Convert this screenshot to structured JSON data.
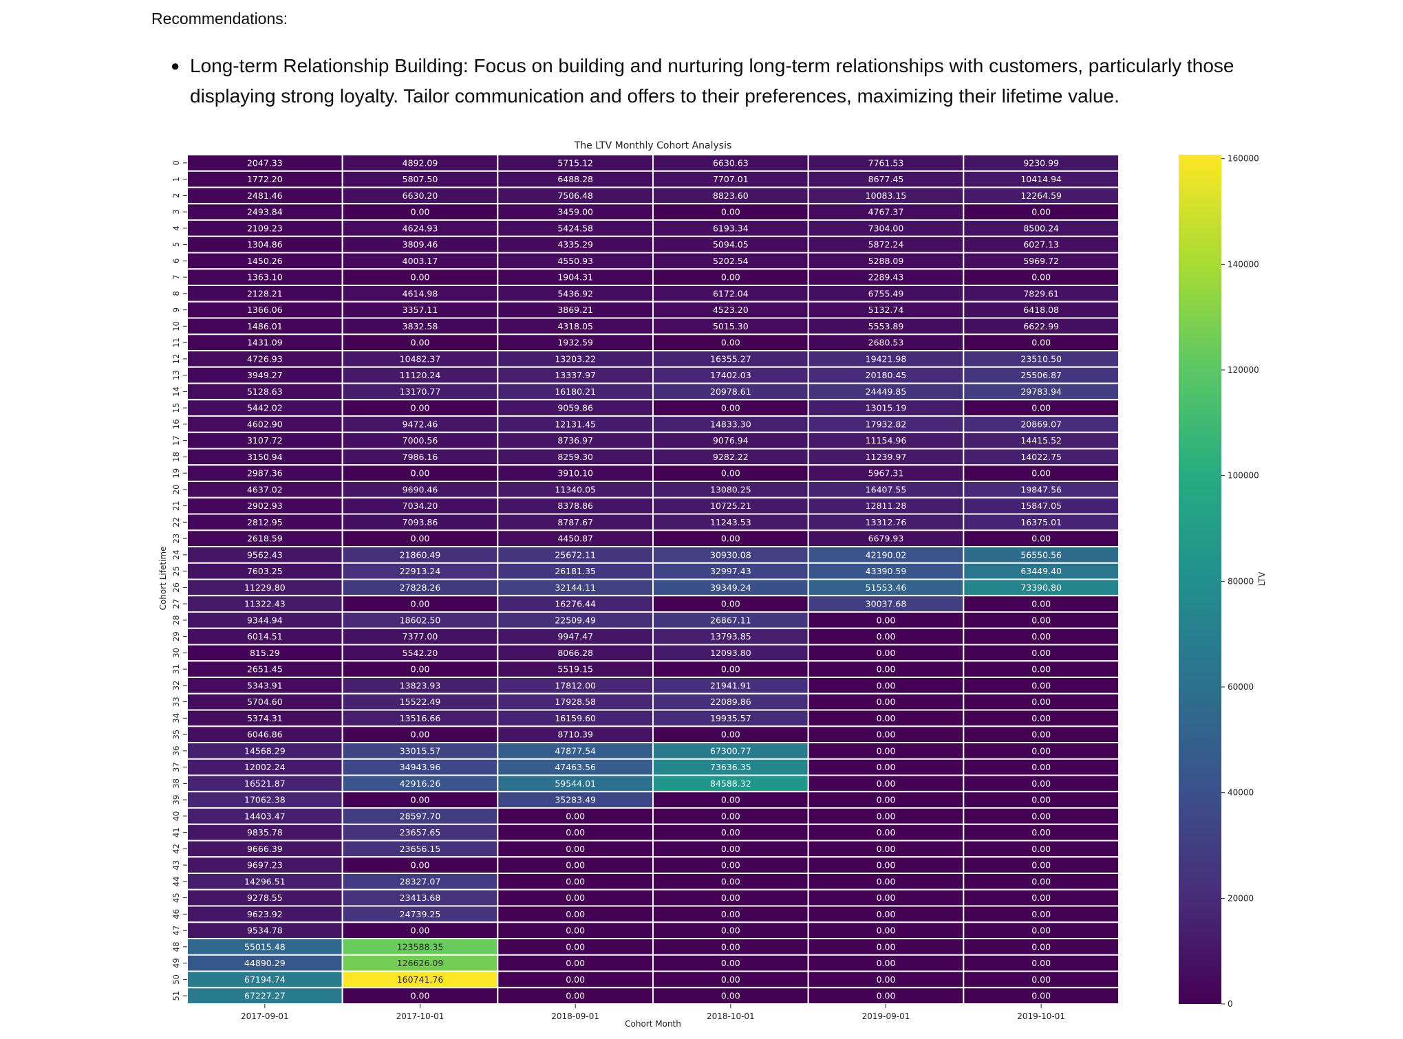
{
  "document": {
    "heading": "Recommendations:",
    "bullets": [
      {
        "title": "Long-term Relationship Building:",
        "text": "Focus on building and nurturing long-term relationships with customers, particularly those displaying strong loyalty. Tailor communication and offers to their preferences, maximizing their lifetime value."
      }
    ]
  },
  "chart_data": {
    "type": "heatmap",
    "title": "The LTV Monthly Cohort Analysis",
    "xlabel": "Cohort Month",
    "ylabel": "Cohort Lifetime",
    "colorbar_label": "LTV",
    "colormap": "viridis",
    "vmin": 0,
    "vmax": 160741.76,
    "colorbar_ticks": [
      0,
      20000,
      40000,
      60000,
      80000,
      100000,
      120000,
      140000,
      160000
    ],
    "columns": [
      "2017-09-01",
      "2017-10-01",
      "2018-09-01",
      "2018-10-01",
      "2019-09-01",
      "2019-10-01"
    ],
    "rows": [
      "0",
      "1",
      "2",
      "3",
      "4",
      "5",
      "6",
      "7",
      "8",
      "9",
      "10",
      "11",
      "12",
      "13",
      "14",
      "15",
      "16",
      "17",
      "18",
      "19",
      "20",
      "21",
      "22",
      "23",
      "24",
      "25",
      "26",
      "27",
      "28",
      "29",
      "30",
      "31",
      "32",
      "33",
      "34",
      "35",
      "36",
      "37",
      "38",
      "39",
      "40",
      "41",
      "42",
      "43",
      "44",
      "45",
      "46",
      "47",
      "48",
      "49",
      "50",
      "51"
    ],
    "values": [
      [
        2047.33,
        4892.09,
        5715.12,
        6630.63,
        7761.53,
        9230.99
      ],
      [
        1772.2,
        5807.5,
        6488.28,
        7707.01,
        8677.45,
        10414.94
      ],
      [
        2481.46,
        6630.2,
        7506.48,
        8823.6,
        10083.15,
        12264.59
      ],
      [
        2493.84,
        0.0,
        3459.0,
        0.0,
        4767.37,
        0.0
      ],
      [
        2109.23,
        4624.93,
        5424.58,
        6193.34,
        7304.0,
        8500.24
      ],
      [
        1304.86,
        3809.46,
        4335.29,
        5094.05,
        5872.24,
        6027.13
      ],
      [
        1450.26,
        4003.17,
        4550.93,
        5202.54,
        5288.09,
        5969.72
      ],
      [
        1363.1,
        0.0,
        1904.31,
        0.0,
        2289.43,
        0.0
      ],
      [
        2128.21,
        4614.98,
        5436.92,
        6172.04,
        6755.49,
        7829.61
      ],
      [
        1366.06,
        3357.11,
        3869.21,
        4523.2,
        5132.74,
        6418.08
      ],
      [
        1486.01,
        3832.58,
        4318.05,
        5015.3,
        5553.89,
        6622.99
      ],
      [
        1431.09,
        0.0,
        1932.59,
        0.0,
        2680.53,
        0.0
      ],
      [
        4726.93,
        10482.37,
        13203.22,
        16355.27,
        19421.98,
        23510.5
      ],
      [
        3949.27,
        11120.24,
        13337.97,
        17402.03,
        20180.45,
        25506.87
      ],
      [
        5128.63,
        13170.77,
        16180.21,
        20978.61,
        24449.85,
        29783.94
      ],
      [
        5442.02,
        0.0,
        9059.86,
        0.0,
        13015.19,
        0.0
      ],
      [
        4602.9,
        9472.46,
        12131.45,
        14833.3,
        17932.82,
        20869.07
      ],
      [
        3107.72,
        7000.56,
        8736.97,
        9076.94,
        11154.96,
        14415.52
      ],
      [
        3150.94,
        7986.16,
        8259.3,
        9282.22,
        11239.97,
        14022.75
      ],
      [
        2987.36,
        0.0,
        3910.1,
        0.0,
        5967.31,
        0.0
      ],
      [
        4637.02,
        9690.46,
        11340.05,
        13080.25,
        16407.55,
        19847.56
      ],
      [
        2902.93,
        7034.2,
        8378.86,
        10725.21,
        12811.28,
        15847.05
      ],
      [
        2812.95,
        7093.86,
        8787.67,
        11243.53,
        13312.76,
        16375.01
      ],
      [
        2618.59,
        0.0,
        4450.87,
        0.0,
        6679.93,
        0.0
      ],
      [
        9562.43,
        21860.49,
        25672.11,
        30930.08,
        42190.02,
        56550.56
      ],
      [
        7603.25,
        22913.24,
        26181.35,
        32997.43,
        43390.59,
        63449.4
      ],
      [
        11229.8,
        27828.26,
        32144.11,
        39349.24,
        51553.46,
        73390.8
      ],
      [
        11322.43,
        0.0,
        16276.44,
        0.0,
        30037.68,
        0.0
      ],
      [
        9344.94,
        18602.5,
        22509.49,
        26867.11,
        0.0,
        0.0
      ],
      [
        6014.51,
        7377.0,
        9947.47,
        13793.85,
        0.0,
        0.0
      ],
      [
        815.29,
        5542.2,
        8066.28,
        12093.8,
        0.0,
        0.0
      ],
      [
        2651.45,
        0.0,
        5519.15,
        0.0,
        0.0,
        0.0
      ],
      [
        5343.91,
        13823.93,
        17812.0,
        21941.91,
        0.0,
        0.0
      ],
      [
        5704.6,
        15522.49,
        17928.58,
        22089.86,
        0.0,
        0.0
      ],
      [
        5374.31,
        13516.66,
        16159.6,
        19935.57,
        0.0,
        0.0
      ],
      [
        6046.86,
        0.0,
        8710.39,
        0.0,
        0.0,
        0.0
      ],
      [
        14568.29,
        33015.57,
        47877.54,
        67300.77,
        0.0,
        0.0
      ],
      [
        12002.24,
        34943.96,
        47463.56,
        73636.35,
        0.0,
        0.0
      ],
      [
        16521.87,
        42916.26,
        59544.01,
        84588.32,
        0.0,
        0.0
      ],
      [
        17062.38,
        0.0,
        35283.49,
        0.0,
        0.0,
        0.0
      ],
      [
        14403.47,
        28597.7,
        0.0,
        0.0,
        0.0,
        0.0
      ],
      [
        9835.78,
        23657.65,
        0.0,
        0.0,
        0.0,
        0.0
      ],
      [
        9666.39,
        23656.15,
        0.0,
        0.0,
        0.0,
        0.0
      ],
      [
        9697.23,
        0.0,
        0.0,
        0.0,
        0.0,
        0.0
      ],
      [
        14296.51,
        28327.07,
        0.0,
        0.0,
        0.0,
        0.0
      ],
      [
        9278.55,
        23413.68,
        0.0,
        0.0,
        0.0,
        0.0
      ],
      [
        9623.92,
        24739.25,
        0.0,
        0.0,
        0.0,
        0.0
      ],
      [
        9534.78,
        0.0,
        0.0,
        0.0,
        0.0,
        0.0
      ],
      [
        55015.48,
        123588.35,
        0.0,
        0.0,
        0.0,
        0.0
      ],
      [
        44890.29,
        126626.09,
        0.0,
        0.0,
        0.0,
        0.0
      ],
      [
        67194.74,
        160741.76,
        0.0,
        0.0,
        0.0,
        0.0
      ],
      [
        67227.27,
        0.0,
        0.0,
        0.0,
        0.0,
        0.0
      ]
    ]
  }
}
